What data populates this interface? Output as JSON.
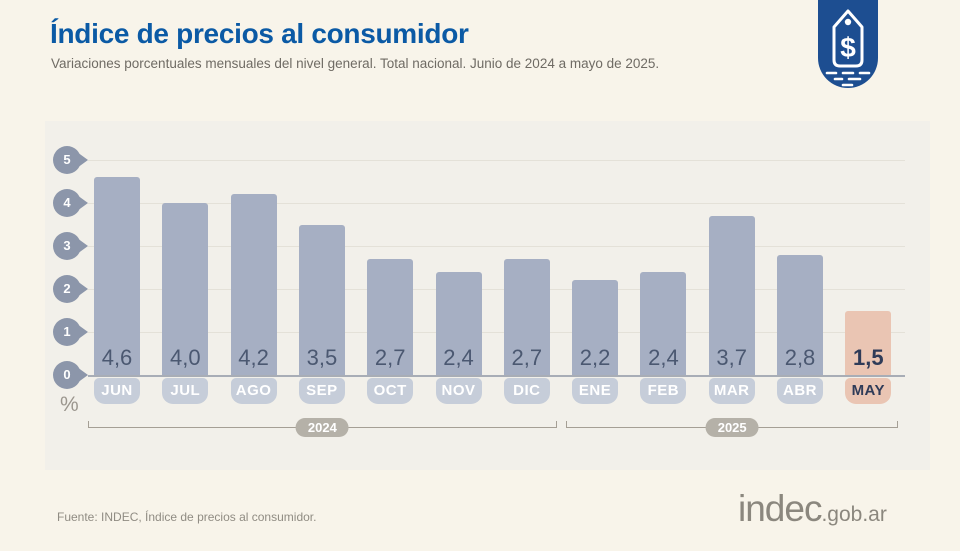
{
  "header": {
    "title": "Índice de precios al consumidor",
    "subtitle": "Variaciones porcentuales mensuales del nivel general. Total nacional. Junio de 2024 a mayo de 2025."
  },
  "icon": {
    "name": "price-tag-icon",
    "badge_color": "#1d4e91",
    "symbol": "$"
  },
  "chart_data": {
    "type": "bar",
    "title": "Índice de precios al consumidor",
    "subtitle": "Variaciones porcentuales mensuales del nivel general. Total nacional. Junio de 2024 a mayo de 2025.",
    "categories": [
      "JUN",
      "JUL",
      "AGO",
      "SEP",
      "OCT",
      "NOV",
      "DIC",
      "ENE",
      "FEB",
      "MAR",
      "ABR",
      "MAY"
    ],
    "values": [
      4.6,
      4.0,
      4.2,
      3.5,
      2.7,
      2.4,
      2.7,
      2.2,
      2.4,
      3.7,
      2.8,
      1.5
    ],
    "value_labels": [
      "4,6",
      "4,0",
      "4,2",
      "3,5",
      "2,7",
      "2,4",
      "2,7",
      "2,2",
      "2,4",
      "3,7",
      "2,8",
      "1,5"
    ],
    "highlight_index": 11,
    "ylabel": "%",
    "ylim": [
      0,
      5
    ],
    "yticks": [
      0,
      1,
      2,
      3,
      4,
      5
    ],
    "grid": true,
    "legend": "none",
    "year_groups": [
      {
        "label": "2024",
        "from": 0,
        "to": 6
      },
      {
        "label": "2025",
        "from": 7,
        "to": 11
      }
    ],
    "bar_color": "#a6afc3",
    "highlight_color": "#eac5b3",
    "month_pill_color": "#c6cdd9"
  },
  "footer": {
    "source": "Fuente: INDEC, Índice de precios al consumidor.",
    "logo_main": "indec",
    "logo_suffix": ".gob.ar"
  }
}
